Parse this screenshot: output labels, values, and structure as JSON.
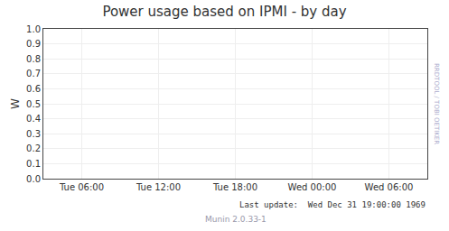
{
  "chart_data": {
    "type": "line",
    "title": "Power usage based on IPMI - by day",
    "ylabel": "W",
    "categories": [
      "Tue 06:00",
      "Tue 12:00",
      "Tue 18:00",
      "Wed 00:00",
      "Wed 06:00"
    ],
    "series": [],
    "ylim": [
      0.0,
      1.0
    ],
    "yticks": [
      {
        "value": 0.0,
        "label": "0.0"
      },
      0.1,
      0.2,
      0.3,
      0.4,
      0.5,
      0.6,
      0.7,
      0.8,
      0.9,
      {
        "value": 1.0,
        "label": "1.0"
      }
    ],
    "grid": true,
    "annotations": [
      "Last update:  Wed Dec 31 19:00:00 1969",
      "Munin 2.0.33-1",
      "RRDTOOL / TOBI OETIKER"
    ]
  }
}
